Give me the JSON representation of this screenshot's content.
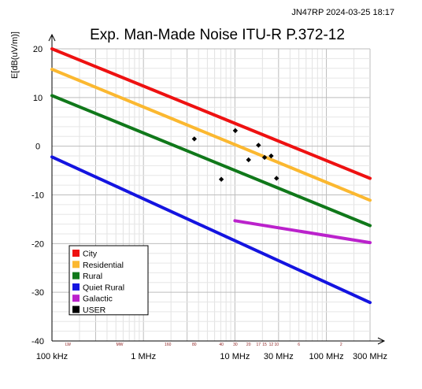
{
  "stamp": "JN47RP 2024-03-25 18:17",
  "chart_data": {
    "type": "line",
    "title": "Exp. Man-Made Noise ITU-R P.372-12",
    "ylabel": "E[dB(uV/m)]",
    "xlabel": "",
    "x_scale": "log",
    "xlim_hz": [
      100000,
      300000000
    ],
    "ylim": [
      -40,
      20
    ],
    "grid": true,
    "legend_position": "bottom-left",
    "x_ticks": [
      {
        "label": "100 kHz",
        "value": 100000
      },
      {
        "label": "1 MHz",
        "value": 1000000
      },
      {
        "label": "10 MHz",
        "value": 10000000
      },
      {
        "label": "30 MHz",
        "value": 30000000
      },
      {
        "label": "100 MHz",
        "value": 100000000
      },
      {
        "label": "300 MHz",
        "value": 300000000
      }
    ],
    "y_ticks": [
      20,
      10,
      0,
      -10,
      -20,
      -30,
      -40
    ],
    "band_labels": [
      {
        "label": "LW",
        "freq_hz": 150000
      },
      {
        "label": "MW",
        "freq_hz": 550000
      },
      {
        "label": "160",
        "freq_hz": 1850000
      },
      {
        "label": "80",
        "freq_hz": 3600000
      },
      {
        "label": "40",
        "freq_hz": 7100000
      },
      {
        "label": "30",
        "freq_hz": 10100000
      },
      {
        "label": "20",
        "freq_hz": 14100000
      },
      {
        "label": "17",
        "freq_hz": 18100000
      },
      {
        "label": "15",
        "freq_hz": 21100000
      },
      {
        "label": "12",
        "freq_hz": 24900000
      },
      {
        "label": "10",
        "freq_hz": 28500000
      },
      {
        "label": "6",
        "freq_hz": 50000000
      },
      {
        "label": "2",
        "freq_hz": 145000000
      }
    ],
    "series": [
      {
        "name": "City",
        "color": "#ee1111",
        "kind": "line",
        "points": [
          [
            100000,
            20
          ],
          [
            300000000,
            -6.6
          ]
        ]
      },
      {
        "name": "Residential",
        "color": "#fbb830",
        "kind": "line",
        "points": [
          [
            100000,
            15.8
          ],
          [
            300000000,
            -11.1
          ]
        ]
      },
      {
        "name": "Rural",
        "color": "#10781a",
        "kind": "line",
        "points": [
          [
            100000,
            10.4
          ],
          [
            300000000,
            -16.3
          ]
        ]
      },
      {
        "name": "Quiet Rural",
        "color": "#1414e0",
        "kind": "line",
        "points": [
          [
            100000,
            -2.2
          ],
          [
            300000000,
            -32.1
          ]
        ]
      },
      {
        "name": "Galactic",
        "color": "#bb22cc",
        "kind": "line",
        "points": [
          [
            10000000,
            -15.3
          ],
          [
            300000000,
            -19.8
          ]
        ]
      },
      {
        "name": "USER",
        "color": "#000000",
        "kind": "scatter",
        "points": [
          [
            3600000,
            1.5
          ],
          [
            7100000,
            -6.8
          ],
          [
            10100000,
            3.2
          ],
          [
            14100000,
            -2.8
          ],
          [
            18100000,
            0.2
          ],
          [
            21100000,
            -2.3
          ],
          [
            24900000,
            -2.0
          ],
          [
            28500000,
            -6.6
          ]
        ]
      }
    ]
  }
}
